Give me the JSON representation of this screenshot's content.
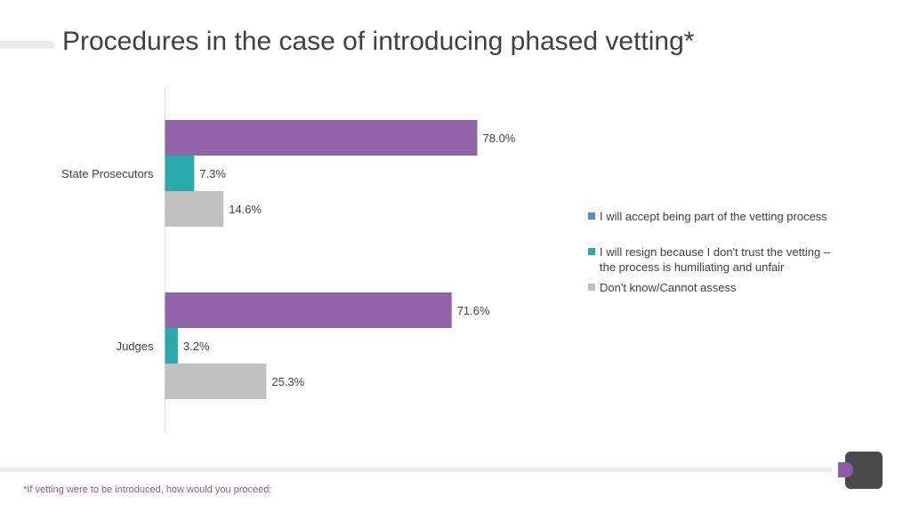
{
  "title": "Procedures in the case of introducing phased vetting*",
  "footnote": "*If vetting were to be introduced, how would you proceed:",
  "chart_data": {
    "type": "bar",
    "orientation": "horizontal",
    "categories": [
      "State Prosecutors",
      "Judges"
    ],
    "series": [
      {
        "name": "I will accept being part of the vetting process",
        "values": [
          78.0,
          71.6
        ],
        "color": "#9163a9",
        "legend_color": "#5b8ec2"
      },
      {
        "name": "I will resign because I don't trust the vetting – the process is humiliating and unfair",
        "values": [
          7.3,
          3.2
        ],
        "color": "#2aaaaa",
        "legend_color": "#2aaaaa"
      },
      {
        "name": "Don't know/Cannot assess",
        "values": [
          14.6,
          25.3
        ],
        "color": "#c0c0c0",
        "legend_color": "#c0c0c0"
      }
    ],
    "data_labels": [
      [
        "78.0%",
        "7.3%",
        "14.6%"
      ],
      [
        "71.6%",
        "3.2%",
        "25.3%"
      ]
    ],
    "xlim": [
      0,
      100
    ],
    "legend_position": "right",
    "grid": false
  },
  "legend": {
    "items": [
      {
        "lines": [
          "I will accept being part of the vetting process"
        ]
      },
      {
        "lines": [
          "I will resign because I don't trust the vetting –",
          "the process is humiliating and unfair"
        ]
      },
      {
        "lines": [
          "Don't know/Cannot assess"
        ]
      }
    ]
  }
}
